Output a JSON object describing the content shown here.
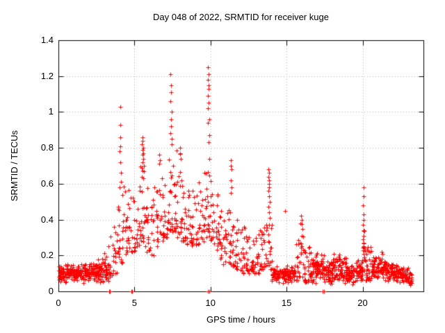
{
  "chart_data": {
    "type": "scatter",
    "title": "Day 048 of 2022, SRMTID for receiver kuge",
    "xlabel": "GPS time / hours",
    "ylabel": "SRMTID / TECUs",
    "xlim": [
      0,
      24
    ],
    "ylim": [
      0,
      1.4
    ],
    "xticks": [
      "0",
      "5",
      "10",
      "15",
      "20"
    ],
    "yticks": [
      "0",
      "0.2",
      "0.4",
      "0.6",
      "0.8",
      "1",
      "1.2",
      "1.4"
    ],
    "grid": true,
    "grid_style": "dotted",
    "legend": false,
    "marker": {
      "shape": "plus",
      "color": "#ff0000",
      "size": 7
    },
    "colors": {
      "grid": "#b0b0b0",
      "axis": "#000000",
      "background": "#ffffff",
      "text": "#000000"
    },
    "seed": 48,
    "envelope_bins": [
      [
        0.0,
        0.5,
        0.04,
        0.16,
        46,
        0
      ],
      [
        0.5,
        1.0,
        0.05,
        0.16,
        46,
        0
      ],
      [
        1.0,
        1.5,
        0.05,
        0.15,
        46,
        0
      ],
      [
        1.5,
        2.0,
        0.04,
        0.16,
        46,
        0
      ],
      [
        2.0,
        2.5,
        0.05,
        0.17,
        46,
        0
      ],
      [
        2.5,
        3.0,
        0.04,
        0.2,
        46,
        0
      ],
      [
        3.0,
        3.3,
        0.05,
        0.22,
        26,
        0
      ],
      [
        3.3,
        3.6,
        0.08,
        0.32,
        15,
        1
      ],
      [
        3.6,
        3.9,
        0.1,
        0.38,
        15,
        1
      ],
      [
        3.9,
        4.2,
        0.16,
        0.55,
        16,
        1
      ],
      [
        4.2,
        4.5,
        0.2,
        0.6,
        15,
        1
      ],
      [
        4.5,
        4.8,
        0.22,
        0.62,
        15,
        1
      ],
      [
        4.8,
        5.1,
        0.22,
        0.56,
        15,
        1
      ],
      [
        5.1,
        5.4,
        0.25,
        0.6,
        15,
        1
      ],
      [
        5.4,
        5.7,
        0.28,
        0.75,
        18,
        1
      ],
      [
        5.7,
        6.0,
        0.22,
        0.6,
        15,
        1
      ],
      [
        6.0,
        6.3,
        0.2,
        0.58,
        15,
        1
      ],
      [
        6.3,
        6.6,
        0.25,
        0.65,
        15,
        1
      ],
      [
        6.6,
        6.9,
        0.28,
        0.72,
        16,
        1
      ],
      [
        6.9,
        7.2,
        0.3,
        0.68,
        15,
        1
      ],
      [
        7.2,
        7.5,
        0.33,
        0.8,
        18,
        1
      ],
      [
        7.5,
        7.8,
        0.33,
        0.82,
        18,
        1
      ],
      [
        7.8,
        8.1,
        0.3,
        0.78,
        16,
        1
      ],
      [
        8.1,
        8.4,
        0.28,
        0.7,
        16,
        1
      ],
      [
        8.4,
        8.7,
        0.25,
        0.62,
        15,
        1
      ],
      [
        8.7,
        9.0,
        0.25,
        0.6,
        15,
        1
      ],
      [
        9.0,
        9.3,
        0.26,
        0.62,
        15,
        1
      ],
      [
        9.3,
        9.6,
        0.28,
        0.68,
        15,
        1
      ],
      [
        9.6,
        9.9,
        0.3,
        0.72,
        16,
        1
      ],
      [
        9.9,
        10.2,
        0.28,
        0.68,
        16,
        1
      ],
      [
        10.2,
        10.5,
        0.22,
        0.58,
        15,
        1
      ],
      [
        10.5,
        10.8,
        0.18,
        0.5,
        15,
        1
      ],
      [
        10.8,
        11.1,
        0.15,
        0.46,
        15,
        1
      ],
      [
        11.1,
        11.4,
        0.15,
        0.52,
        15,
        1
      ],
      [
        11.4,
        11.7,
        0.14,
        0.45,
        15,
        1
      ],
      [
        11.7,
        12.0,
        0.12,
        0.4,
        15,
        1
      ],
      [
        12.0,
        12.3,
        0.1,
        0.36,
        15,
        1
      ],
      [
        12.3,
        12.6,
        0.1,
        0.34,
        15,
        1
      ],
      [
        12.6,
        12.9,
        0.1,
        0.3,
        15,
        1
      ],
      [
        12.9,
        13.2,
        0.1,
        0.32,
        15,
        1
      ],
      [
        13.2,
        13.5,
        0.12,
        0.38,
        15,
        1
      ],
      [
        13.5,
        13.8,
        0.14,
        0.45,
        15,
        1
      ],
      [
        13.8,
        14.05,
        0.12,
        0.4,
        14,
        1
      ],
      [
        14.05,
        14.5,
        0.04,
        0.15,
        40,
        0
      ],
      [
        14.5,
        15.0,
        0.04,
        0.14,
        44,
        0
      ],
      [
        15.0,
        15.5,
        0.04,
        0.16,
        44,
        0
      ],
      [
        15.5,
        15.8,
        0.06,
        0.3,
        16,
        1
      ],
      [
        15.8,
        16.1,
        0.08,
        0.4,
        16,
        1
      ],
      [
        16.1,
        16.5,
        0.05,
        0.26,
        26,
        1
      ],
      [
        16.5,
        17.0,
        0.04,
        0.22,
        44,
        0
      ],
      [
        17.0,
        17.5,
        0.04,
        0.22,
        44,
        0
      ],
      [
        17.5,
        18.0,
        0.03,
        0.18,
        44,
        0
      ],
      [
        18.0,
        18.5,
        0.04,
        0.22,
        44,
        0
      ],
      [
        18.5,
        19.0,
        0.04,
        0.2,
        44,
        0
      ],
      [
        19.0,
        19.5,
        0.03,
        0.16,
        44,
        0
      ],
      [
        19.5,
        20.0,
        0.04,
        0.18,
        44,
        0
      ],
      [
        20.0,
        20.2,
        0.1,
        0.35,
        12,
        1
      ],
      [
        20.2,
        20.6,
        0.06,
        0.26,
        28,
        1
      ],
      [
        20.6,
        21.0,
        0.05,
        0.22,
        40,
        0
      ],
      [
        21.0,
        21.5,
        0.05,
        0.24,
        44,
        0
      ],
      [
        21.5,
        22.0,
        0.04,
        0.18,
        44,
        0
      ],
      [
        22.0,
        22.5,
        0.04,
        0.16,
        46,
        0
      ],
      [
        22.5,
        23.0,
        0.04,
        0.14,
        46,
        0
      ],
      [
        23.0,
        23.25,
        0.03,
        0.12,
        22,
        0
      ]
    ],
    "spike_points": [
      [
        4.05,
        1.03
      ],
      [
        4.07,
        0.93
      ],
      [
        4.05,
        0.86
      ],
      [
        4.08,
        0.81
      ],
      [
        4.04,
        0.78
      ],
      [
        4.06,
        0.72
      ],
      [
        4.1,
        0.66
      ],
      [
        4.12,
        0.61
      ],
      [
        4.03,
        0.58
      ],
      [
        5.52,
        0.86
      ],
      [
        5.55,
        0.84
      ],
      [
        5.5,
        0.82
      ],
      [
        5.57,
        0.8
      ],
      [
        5.53,
        0.79
      ],
      [
        5.56,
        0.77
      ],
      [
        5.51,
        0.76
      ],
      [
        5.58,
        0.74
      ],
      [
        5.54,
        0.72
      ],
      [
        5.6,
        0.7
      ],
      [
        5.62,
        0.67
      ],
      [
        5.48,
        0.64
      ],
      [
        6.65,
        0.76
      ],
      [
        6.68,
        0.73
      ],
      [
        6.62,
        0.71
      ],
      [
        7.38,
        1.21
      ],
      [
        7.42,
        1.15
      ],
      [
        7.4,
        1.11
      ],
      [
        7.36,
        1.06
      ],
      [
        7.44,
        1.0
      ],
      [
        7.39,
        0.96
      ],
      [
        7.41,
        0.92
      ],
      [
        7.37,
        0.88
      ],
      [
        7.43,
        0.85
      ],
      [
        7.45,
        0.82
      ],
      [
        7.98,
        0.8
      ],
      [
        8.02,
        0.77
      ],
      [
        8.05,
        0.74
      ],
      [
        9.85,
        1.25
      ],
      [
        9.87,
        1.21
      ],
      [
        9.83,
        1.18
      ],
      [
        9.89,
        1.15
      ],
      [
        9.86,
        1.13
      ],
      [
        9.84,
        1.09
      ],
      [
        9.88,
        1.05
      ],
      [
        9.85,
        1.02
      ],
      [
        9.9,
        0.96
      ],
      [
        9.82,
        0.94
      ],
      [
        9.91,
        0.87
      ],
      [
        9.86,
        0.83
      ],
      [
        9.93,
        0.74
      ],
      [
        11.35,
        0.73
      ],
      [
        11.33,
        0.7
      ],
      [
        11.37,
        0.68
      ],
      [
        11.34,
        0.62
      ],
      [
        11.36,
        0.58
      ],
      [
        11.32,
        0.55
      ],
      [
        13.82,
        0.68
      ],
      [
        13.85,
        0.66
      ],
      [
        13.8,
        0.64
      ],
      [
        13.87,
        0.62
      ],
      [
        13.83,
        0.6
      ],
      [
        13.86,
        0.58
      ],
      [
        13.81,
        0.56
      ],
      [
        13.84,
        0.53
      ],
      [
        13.88,
        0.5
      ],
      [
        13.82,
        0.47
      ],
      [
        13.85,
        0.44
      ],
      [
        13.9,
        0.41
      ],
      [
        14.9,
        0.45
      ],
      [
        15.95,
        0.42
      ],
      [
        16.0,
        0.4
      ],
      [
        15.9,
        0.38
      ],
      [
        16.05,
        0.35
      ],
      [
        20.05,
        0.58
      ],
      [
        20.06,
        0.53
      ],
      [
        20.04,
        0.48
      ],
      [
        20.05,
        0.43
      ],
      [
        20.07,
        0.4
      ],
      [
        20.03,
        0.37
      ],
      [
        20.05,
        0.34
      ],
      [
        20.06,
        0.31
      ],
      [
        20.04,
        0.29
      ],
      [
        20.05,
        0.27
      ],
      [
        20.07,
        0.25
      ],
      [
        20.03,
        0.23
      ],
      [
        20.05,
        0.21
      ]
    ],
    "zero_points": [
      3.33,
      3.36,
      3.4,
      4.78,
      4.85,
      9.82,
      9.93,
      17.35,
      17.44
    ]
  }
}
